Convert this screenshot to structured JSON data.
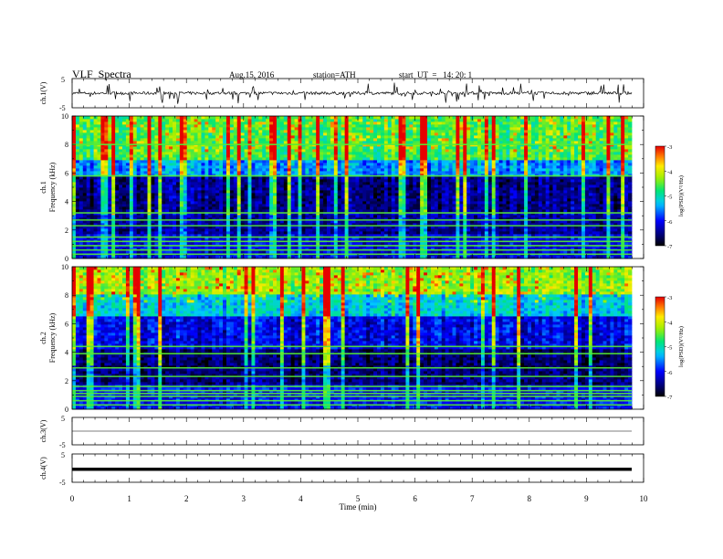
{
  "header": {
    "title": "VLF  Spectra",
    "date": "Aug.15, 2016",
    "station": "station=ATH",
    "start": "start  UT  =   14: 20: 1"
  },
  "chart_data": [
    {
      "type": "line",
      "panel": "ch1-waveform",
      "ylabel": "ch.1(V)",
      "ylim": [
        -5,
        5
      ],
      "yticks": [
        "5",
        "-5"
      ],
      "baseline": 0.0,
      "noise_amplitude": 0.5,
      "spike_amplitude": 3.5
    },
    {
      "type": "heatmap",
      "panel": "ch1-spectrogram",
      "ylabel": [
        "ch.1",
        "Frequency  (kHz)"
      ],
      "ylim": [
        0,
        10
      ],
      "yticks": [
        "0",
        "2",
        "4",
        "6",
        "8",
        "10"
      ],
      "xlim": [
        0,
        9.8
      ],
      "colorbar": {
        "label": "log(PSD)(V²/Hz)",
        "ticks": [
          "-3",
          "-4",
          "-5",
          "-6",
          "-7"
        ],
        "range": [
          -7,
          -3
        ]
      },
      "bands_khz": [
        [
          0,
          1.7,
          -6.3
        ],
        [
          1.7,
          3.3,
          -6.6
        ],
        [
          3.3,
          5.8,
          -6.8
        ],
        [
          5.8,
          7.0,
          -5.8
        ],
        [
          7.0,
          10.0,
          -4.9
        ]
      ],
      "tone_lines_khz": [
        0.3,
        0.6,
        0.9,
        1.2,
        1.5,
        2.3,
        2.7,
        3.2,
        5.8,
        8.0
      ]
    },
    {
      "type": "heatmap",
      "panel": "ch2-spectrogram",
      "ylabel": [
        "ch.2",
        "Frequency  (kHz)"
      ],
      "ylim": [
        0,
        10
      ],
      "yticks": [
        "0",
        "2",
        "4",
        "6",
        "8",
        "10"
      ],
      "xlim": [
        0,
        9.8
      ],
      "colorbar": {
        "label": "log(PSD)(V²/Hz)",
        "ticks": [
          "-3",
          "-4",
          "-5",
          "-6",
          "-7"
        ],
        "range": [
          -7,
          -3
        ]
      },
      "bands_khz": [
        [
          0,
          1.7,
          -6.2
        ],
        [
          1.7,
          2.9,
          -6.7
        ],
        [
          2.9,
          4.2,
          -6.9
        ],
        [
          4.2,
          6.5,
          -6.4
        ],
        [
          6.5,
          8.0,
          -5.5
        ],
        [
          8.0,
          10.0,
          -4.6
        ]
      ],
      "tone_lines_khz": [
        0.3,
        0.6,
        0.9,
        1.1,
        1.3,
        1.6,
        2.3,
        2.9,
        3.9,
        4.4
      ]
    },
    {
      "type": "line",
      "panel": "ch3-waveform",
      "ylabel": "ch.3(V)",
      "ylim": [
        -5,
        5
      ],
      "yticks": [
        "5",
        "-5"
      ],
      "baseline": 0.0,
      "noise_amplitude": 0.0
    },
    {
      "type": "line",
      "panel": "ch4-waveform",
      "xlabel": "Time  (min)",
      "ylabel": "ch.4(V)",
      "ylim": [
        -5,
        5
      ],
      "yticks": [
        "5",
        "-5"
      ],
      "xticks": [
        "0",
        "1",
        "2",
        "3",
        "4",
        "5",
        "6",
        "7",
        "8",
        "9",
        "10"
      ],
      "xlim": [
        0,
        10
      ],
      "baseline": -0.4,
      "noise_amplitude": 0.0
    }
  ]
}
